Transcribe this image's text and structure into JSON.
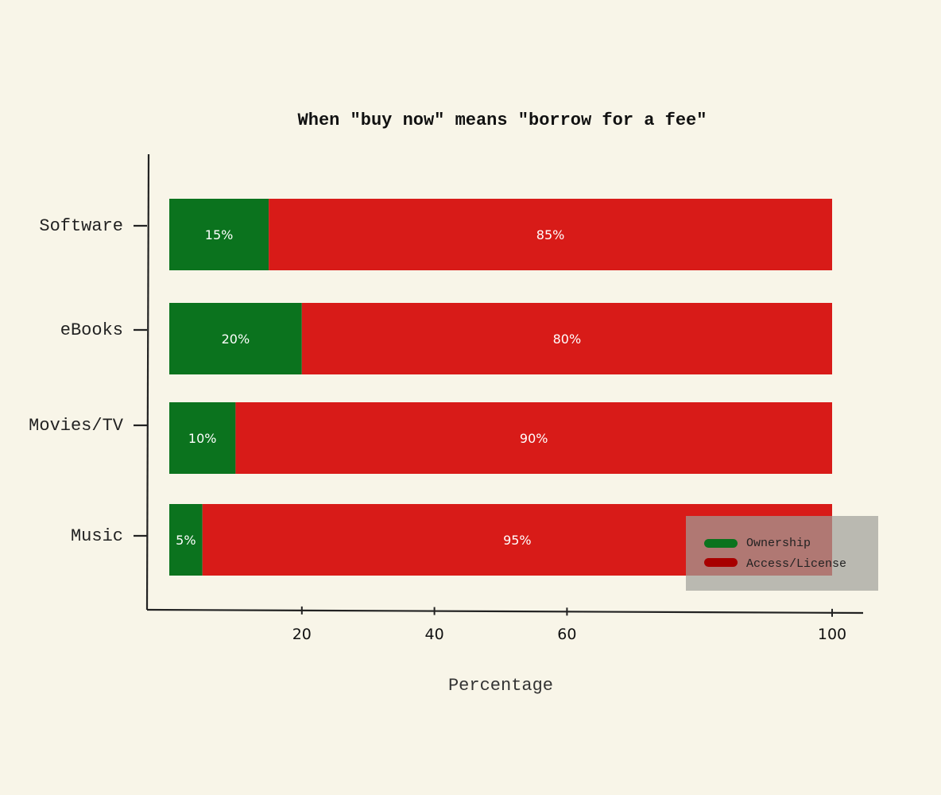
{
  "chart_data": {
    "type": "bar",
    "orientation": "horizontal",
    "stacked": true,
    "title": "When \"buy now\" means \"borrow for a fee\"",
    "xlabel": "Percentage",
    "ylabel": "",
    "categories": [
      "Software",
      "eBooks",
      "Movies/TV",
      "Music"
    ],
    "series": [
      {
        "name": "Ownership",
        "color": "#0b731e",
        "values": [
          15,
          20,
          10,
          5
        ],
        "labels": [
          "15%",
          "20%",
          "10%",
          "5%"
        ]
      },
      {
        "name": "Access/License",
        "color": "#d81b18",
        "values": [
          85,
          80,
          90,
          95
        ],
        "labels": [
          "85%",
          "80%",
          "90%",
          "95%"
        ]
      }
    ],
    "legend_colors": [
      "#0b731e",
      "#a80000"
    ],
    "xlim": [
      0,
      100
    ],
    "xticks": [
      20,
      40,
      60,
      100
    ],
    "grid": false,
    "legend_position": "bottom-right"
  }
}
